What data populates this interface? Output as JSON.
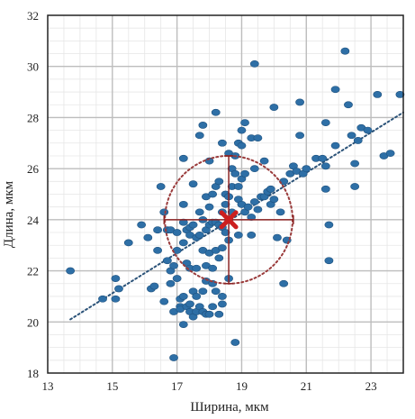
{
  "chart_data": {
    "type": "scatter",
    "xlabel": "Ширина, мкм",
    "ylabel": "Длина, мкм",
    "xlim": [
      13,
      24
    ],
    "ylim": [
      18,
      32
    ],
    "x_ticks": [
      "13",
      "15",
      "17",
      "19",
      "21",
      "23"
    ],
    "y_ticks": [
      "18",
      "20",
      "22",
      "24",
      "26",
      "28",
      "30",
      "32"
    ],
    "grid": true,
    "points": [
      [
        13.7,
        22.0
      ],
      [
        14.7,
        20.9
      ],
      [
        15.1,
        20.9
      ],
      [
        15.1,
        21.7
      ],
      [
        15.2,
        21.3
      ],
      [
        15.5,
        23.1
      ],
      [
        15.9,
        23.8
      ],
      [
        16.1,
        23.3
      ],
      [
        16.2,
        21.3
      ],
      [
        16.3,
        21.4
      ],
      [
        16.4,
        22.8
      ],
      [
        16.4,
        23.6
      ],
      [
        16.5,
        25.3
      ],
      [
        16.6,
        24.3
      ],
      [
        16.6,
        20.8
      ],
      [
        16.7,
        22.4
      ],
      [
        16.7,
        23.6
      ],
      [
        16.8,
        23.6
      ],
      [
        16.8,
        22.0
      ],
      [
        16.8,
        21.5
      ],
      [
        16.9,
        22.2
      ],
      [
        16.9,
        20.4
      ],
      [
        16.9,
        18.6
      ],
      [
        17.0,
        23.5
      ],
      [
        17.0,
        22.8
      ],
      [
        17.0,
        21.7
      ],
      [
        17.1,
        20.9
      ],
      [
        17.1,
        20.6
      ],
      [
        17.1,
        20.5
      ],
      [
        17.2,
        26.4
      ],
      [
        17.2,
        24.6
      ],
      [
        17.2,
        23.9
      ],
      [
        17.2,
        23.1
      ],
      [
        17.2,
        21.0
      ],
      [
        17.2,
        19.9
      ],
      [
        17.3,
        23.6
      ],
      [
        17.3,
        22.3
      ],
      [
        17.3,
        20.6
      ],
      [
        17.4,
        23.7
      ],
      [
        17.4,
        23.4
      ],
      [
        17.4,
        22.1
      ],
      [
        17.4,
        20.7
      ],
      [
        17.4,
        20.4
      ],
      [
        17.5,
        25.4
      ],
      [
        17.5,
        23.8
      ],
      [
        17.5,
        21.2
      ],
      [
        17.5,
        20.2
      ],
      [
        17.6,
        23.3
      ],
      [
        17.6,
        22.1
      ],
      [
        17.6,
        21.0
      ],
      [
        17.6,
        20.4
      ],
      [
        17.7,
        27.3
      ],
      [
        17.7,
        24.3
      ],
      [
        17.7,
        23.4
      ],
      [
        17.7,
        20.6
      ],
      [
        17.8,
        27.7
      ],
      [
        17.8,
        24.0
      ],
      [
        17.8,
        22.8
      ],
      [
        17.8,
        21.2
      ],
      [
        17.8,
        20.4
      ],
      [
        17.9,
        24.9
      ],
      [
        17.9,
        23.6
      ],
      [
        17.9,
        22.2
      ],
      [
        17.9,
        21.6
      ],
      [
        17.9,
        20.3
      ],
      [
        18.0,
        26.3
      ],
      [
        18.0,
        24.5
      ],
      [
        18.0,
        23.8
      ],
      [
        18.0,
        22.7
      ],
      [
        18.0,
        20.3
      ],
      [
        18.1,
        25.0
      ],
      [
        18.1,
        23.9
      ],
      [
        18.1,
        22.1
      ],
      [
        18.1,
        21.5
      ],
      [
        18.1,
        20.6
      ],
      [
        18.2,
        28.2
      ],
      [
        18.2,
        25.3
      ],
      [
        18.2,
        23.9
      ],
      [
        18.2,
        22.8
      ],
      [
        18.2,
        21.2
      ],
      [
        18.3,
        25.5
      ],
      [
        18.3,
        23.8
      ],
      [
        18.3,
        22.5
      ],
      [
        18.3,
        20.3
      ],
      [
        18.4,
        27.0
      ],
      [
        18.4,
        24.3
      ],
      [
        18.4,
        23.7
      ],
      [
        18.4,
        22.9
      ],
      [
        18.4,
        21.0
      ],
      [
        18.4,
        20.7
      ],
      [
        18.5,
        25.0
      ],
      [
        18.5,
        24.6
      ],
      [
        18.5,
        23.5
      ],
      [
        18.6,
        26.6
      ],
      [
        18.6,
        24.9
      ],
      [
        18.6,
        24.0
      ],
      [
        18.6,
        23.2
      ],
      [
        18.6,
        21.7
      ],
      [
        18.7,
        26.0
      ],
      [
        18.7,
        25.3
      ],
      [
        18.7,
        24.3
      ],
      [
        18.8,
        26.5
      ],
      [
        18.8,
        25.8
      ],
      [
        18.8,
        19.2
      ],
      [
        18.9,
        27.0
      ],
      [
        18.9,
        25.3
      ],
      [
        18.9,
        24.8
      ],
      [
        18.9,
        23.4
      ],
      [
        19.0,
        27.5
      ],
      [
        19.0,
        26.9
      ],
      [
        19.0,
        25.6
      ],
      [
        19.0,
        24.6
      ],
      [
        19.1,
        27.8
      ],
      [
        19.1,
        25.8
      ],
      [
        19.1,
        24.3
      ],
      [
        19.2,
        24.5
      ],
      [
        19.3,
        27.2
      ],
      [
        19.3,
        24.1
      ],
      [
        19.3,
        23.4
      ],
      [
        19.4,
        30.1
      ],
      [
        19.4,
        26.0
      ],
      [
        19.4,
        24.7
      ],
      [
        19.5,
        27.2
      ],
      [
        19.5,
        24.4
      ],
      [
        19.6,
        24.9
      ],
      [
        19.7,
        26.3
      ],
      [
        19.7,
        24.9
      ],
      [
        19.8,
        25.1
      ],
      [
        19.9,
        25.2
      ],
      [
        19.9,
        24.6
      ],
      [
        20.0,
        28.4
      ],
      [
        20.0,
        24.8
      ],
      [
        20.1,
        23.3
      ],
      [
        20.2,
        24.3
      ],
      [
        20.3,
        25.5
      ],
      [
        20.3,
        21.5
      ],
      [
        20.4,
        23.2
      ],
      [
        20.5,
        25.8
      ],
      [
        20.6,
        26.1
      ],
      [
        20.7,
        25.9
      ],
      [
        20.8,
        28.6
      ],
      [
        20.8,
        27.3
      ],
      [
        20.9,
        25.8
      ],
      [
        21.0,
        26.0
      ],
      [
        21.3,
        26.4
      ],
      [
        21.5,
        26.4
      ],
      [
        21.6,
        27.8
      ],
      [
        21.6,
        26.1
      ],
      [
        21.6,
        25.2
      ],
      [
        21.7,
        23.8
      ],
      [
        21.7,
        22.4
      ],
      [
        21.9,
        29.1
      ],
      [
        21.9,
        26.9
      ],
      [
        22.2,
        30.6
      ],
      [
        22.3,
        28.5
      ],
      [
        22.4,
        27.3
      ],
      [
        22.5,
        26.2
      ],
      [
        22.5,
        25.3
      ],
      [
        22.6,
        27.1
      ],
      [
        22.7,
        27.6
      ],
      [
        22.9,
        27.5
      ],
      [
        23.2,
        28.9
      ],
      [
        23.4,
        26.5
      ],
      [
        23.6,
        26.6
      ],
      [
        23.9,
        28.9
      ]
    ],
    "trendline": [
      [
        13.7,
        20.1
      ],
      [
        24.0,
        28.2
      ]
    ],
    "center": [
      18.6,
      24.0
    ],
    "error_bars": {
      "x": [
        16.6,
        20.6
      ],
      "y": [
        21.5,
        26.5
      ]
    },
    "circle_radius_y": 2.5,
    "colors": {
      "points": "#2e6fa6",
      "trendline": "#2a5278",
      "center": "#cc1f1f",
      "circle": "#9a3b3b",
      "error_bars": "#8b2323"
    }
  }
}
